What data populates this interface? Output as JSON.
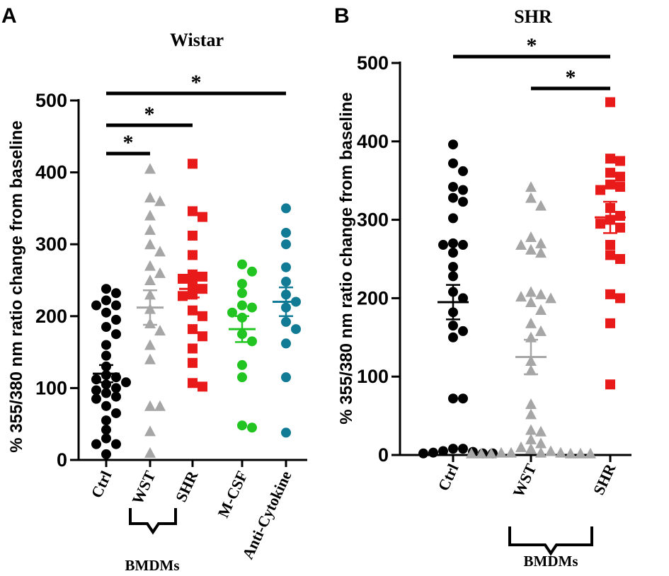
{
  "chart_data": [
    {
      "panel": "A",
      "type": "scatter",
      "title": "Wistar",
      "ylabel": "% 355/380 nm ratio change from baseline",
      "ylim": [
        0,
        500
      ],
      "yticks": [
        0,
        100,
        200,
        300,
        400,
        500
      ],
      "categories": [
        "Ctrl",
        "WST",
        "SHR",
        "M-CSF",
        "Anti-Cytokine"
      ],
      "group_label": "BMDMs",
      "group_members": [
        "WST",
        "SHR"
      ],
      "series": [
        {
          "category": "Ctrl",
          "marker": "circle",
          "color": "#000000",
          "mean": 120,
          "sem": 12,
          "values": [
            238,
            232,
            222,
            215,
            215,
            205,
            195,
            185,
            175,
            160,
            145,
            130,
            118,
            115,
            112,
            108,
            105,
            100,
            97,
            93,
            88,
            85,
            75,
            65,
            55,
            42,
            30,
            22,
            22,
            8
          ]
        },
        {
          "category": "WST",
          "marker": "triangle",
          "color": "#a6a6a6",
          "mean": 212,
          "sem": 24,
          "values": [
            405,
            365,
            360,
            340,
            320,
            300,
            290,
            270,
            260,
            250,
            230,
            210,
            190,
            180,
            160,
            140,
            75,
            75,
            40,
            10
          ]
        },
        {
          "category": "SHR",
          "marker": "square",
          "color": "#e81a1a",
          "mean": 238,
          "sem": 12,
          "values": [
            412,
            346,
            338,
            312,
            285,
            258,
            255,
            252,
            245,
            238,
            230,
            228,
            208,
            200,
            182,
            172,
            155,
            135,
            107,
            102
          ]
        },
        {
          "category": "M-CSF",
          "marker": "circle",
          "color": "#21c421",
          "mean": 182,
          "sem": 18,
          "values": [
            272,
            262,
            245,
            232,
            215,
            212,
            205,
            198,
            175,
            165,
            132,
            115,
            48,
            45
          ]
        },
        {
          "category": "Anti-Cytokine",
          "marker": "circle",
          "color": "#117a95",
          "mean": 220,
          "sem": 20,
          "values": [
            350,
            316,
            300,
            268,
            248,
            230,
            220,
            212,
            192,
            182,
            162,
            115,
            38
          ]
        }
      ],
      "significance": [
        {
          "from": "Ctrl",
          "to": "WST",
          "label": "*"
        },
        {
          "from": "Ctrl",
          "to": "SHR",
          "label": "*"
        },
        {
          "from": "Ctrl",
          "to": "Anti-Cytokine",
          "label": "*"
        }
      ]
    },
    {
      "panel": "B",
      "type": "scatter",
      "title": "SHR",
      "ylabel": "% 355/380 nm ratio change from baseline",
      "ylim": [
        0,
        500
      ],
      "yticks": [
        0,
        100,
        200,
        300,
        400,
        500
      ],
      "categories": [
        "Ctrl",
        "WST",
        "SHR"
      ],
      "group_label": "BMDMs",
      "group_members": [
        "WST",
        "SHR"
      ],
      "series": [
        {
          "category": "Ctrl",
          "marker": "circle",
          "color": "#000000",
          "mean": 195,
          "sem": 22,
          "values": [
            396,
            372,
            362,
            342,
            338,
            328,
            323,
            302,
            270,
            268,
            268,
            258,
            240,
            228,
            208,
            200,
            182,
            165,
            158,
            150,
            72,
            72,
            8,
            8,
            5,
            4,
            3,
            2,
            2,
            2
          ]
        },
        {
          "category": "WST",
          "marker": "triangle",
          "color": "#a6a6a6",
          "mean": 125,
          "sem": 22,
          "values": [
            342,
            328,
            318,
            278,
            270,
            268,
            262,
            258,
            208,
            205,
            202,
            200,
            195,
            185,
            168,
            158,
            150,
            120,
            108,
            65,
            52,
            32,
            30,
            20,
            15,
            10,
            8,
            5,
            3,
            3,
            3,
            3,
            2,
            2,
            2,
            2,
            2,
            2
          ]
        },
        {
          "category": "SHR",
          "marker": "square",
          "color": "#e81a1a",
          "mean": 303,
          "sem": 20,
          "values": [
            450,
            378,
            375,
            360,
            355,
            345,
            342,
            338,
            315,
            305,
            300,
            295,
            290,
            268,
            255,
            250,
            205,
            200,
            168,
            90
          ]
        }
      ],
      "significance": [
        {
          "from": "Ctrl",
          "to": "SHR",
          "label": "*"
        },
        {
          "from": "WST",
          "to": "SHR",
          "label": "*"
        }
      ]
    }
  ]
}
